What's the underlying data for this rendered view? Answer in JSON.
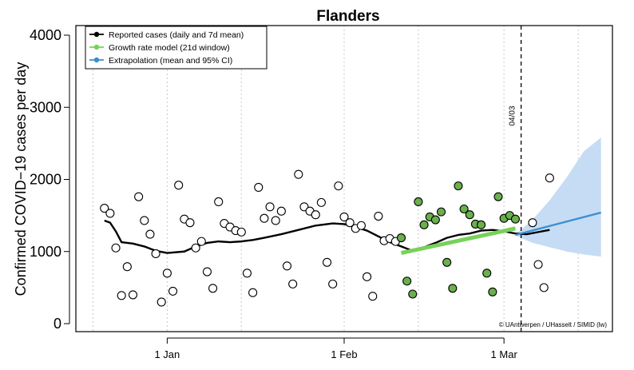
{
  "chart_data": {
    "type": "scatter",
    "title": "Flanders",
    "xlabel": "",
    "ylabel": "Confirmed COVID−19 cases per day",
    "ylim": [
      0,
      4000
    ],
    "yticks": [
      0,
      1000,
      2000,
      3000,
      4000
    ],
    "xlim": [
      "2020-12-16",
      "2021-03-20"
    ],
    "xticks": [
      {
        "date": "2021-01-01",
        "label": "1 Jan"
      },
      {
        "date": "2021-02-01",
        "label": "1 Feb"
      },
      {
        "date": "2021-03-01",
        "label": "1 Mar"
      }
    ],
    "grid_dates": [
      "2020-12-19",
      "2021-01-01",
      "2021-01-14",
      "2021-02-01",
      "2021-02-14",
      "2021-03-01",
      "2021-03-14"
    ],
    "vline": {
      "date": "2021-03-04",
      "label": "04/03",
      "style": "dashed"
    },
    "legend_position": "top-left",
    "colors": {
      "reported": "#000000",
      "growth_points": "#6ab04c",
      "growth_line": "#77d15a",
      "extrapolation": "#3a8fd1",
      "ci_band": "#c6dcf4",
      "grid": "#c8c8c8"
    },
    "series": [
      {
        "name": "Reported cases (daily and 7d mean)",
        "kind": "points_and_mean",
        "points": [
          [
            "2020-12-21",
            1600
          ],
          [
            "2020-12-22",
            1530
          ],
          [
            "2020-12-23",
            1050
          ],
          [
            "2020-12-24",
            390
          ],
          [
            "2020-12-25",
            790
          ],
          [
            "2020-12-26",
            400
          ],
          [
            "2020-12-27",
            1760
          ],
          [
            "2020-12-28",
            1430
          ],
          [
            "2020-12-29",
            1240
          ],
          [
            "2020-12-30",
            970
          ],
          [
            "2020-12-31",
            300
          ],
          [
            "2021-01-01",
            700
          ],
          [
            "2021-01-02",
            450
          ],
          [
            "2021-01-03",
            1920
          ],
          [
            "2021-01-04",
            1450
          ],
          [
            "2021-01-05",
            1400
          ],
          [
            "2021-01-06",
            1050
          ],
          [
            "2021-01-07",
            1140
          ],
          [
            "2021-01-08",
            720
          ],
          [
            "2021-01-09",
            490
          ],
          [
            "2021-01-10",
            1690
          ],
          [
            "2021-01-11",
            1390
          ],
          [
            "2021-01-12",
            1340
          ],
          [
            "2021-01-13",
            1290
          ],
          [
            "2021-01-14",
            1270
          ],
          [
            "2021-01-15",
            700
          ],
          [
            "2021-01-16",
            430
          ],
          [
            "2021-01-17",
            1890
          ],
          [
            "2021-01-18",
            1460
          ],
          [
            "2021-01-19",
            1620
          ],
          [
            "2021-01-20",
            1430
          ],
          [
            "2021-01-21",
            1560
          ],
          [
            "2021-01-22",
            800
          ],
          [
            "2021-01-23",
            550
          ],
          [
            "2021-01-24",
            2070
          ],
          [
            "2021-01-25",
            1620
          ],
          [
            "2021-01-26",
            1560
          ],
          [
            "2021-01-27",
            1510
          ],
          [
            "2021-01-28",
            1680
          ],
          [
            "2021-01-29",
            850
          ],
          [
            "2021-01-30",
            550
          ],
          [
            "2021-01-31",
            1910
          ],
          [
            "2021-02-01",
            1480
          ],
          [
            "2021-02-02",
            1400
          ],
          [
            "2021-02-03",
            1320
          ],
          [
            "2021-02-04",
            1360
          ],
          [
            "2021-02-05",
            650
          ],
          [
            "2021-02-06",
            380
          ],
          [
            "2021-02-07",
            1490
          ],
          [
            "2021-02-08",
            1150
          ],
          [
            "2021-02-09",
            1180
          ],
          [
            "2021-02-10",
            1140
          ],
          [
            "2021-03-06",
            1400
          ],
          [
            "2021-03-07",
            820
          ],
          [
            "2021-03-08",
            500
          ],
          [
            "2021-03-09",
            2020
          ]
        ],
        "mean": [
          [
            "2020-12-21",
            1430
          ],
          [
            "2020-12-22",
            1400
          ],
          [
            "2020-12-23",
            1280
          ],
          [
            "2020-12-24",
            1130
          ],
          [
            "2020-12-26",
            1110
          ],
          [
            "2020-12-28",
            1070
          ],
          [
            "2020-12-30",
            1010
          ],
          [
            "2021-01-01",
            980
          ],
          [
            "2021-01-04",
            1000
          ],
          [
            "2021-01-06",
            1070
          ],
          [
            "2021-01-08",
            1120
          ],
          [
            "2021-01-10",
            1140
          ],
          [
            "2021-01-12",
            1130
          ],
          [
            "2021-01-14",
            1140
          ],
          [
            "2021-01-16",
            1160
          ],
          [
            "2021-01-18",
            1190
          ],
          [
            "2021-01-21",
            1240
          ],
          [
            "2021-01-24",
            1300
          ],
          [
            "2021-01-27",
            1360
          ],
          [
            "2021-01-30",
            1390
          ],
          [
            "2021-02-01",
            1380
          ],
          [
            "2021-02-03",
            1340
          ],
          [
            "2021-02-05",
            1290
          ],
          [
            "2021-02-07",
            1210
          ],
          [
            "2021-02-09",
            1130
          ],
          [
            "2021-02-11",
            1070
          ],
          [
            "2021-02-13",
            1010
          ],
          [
            "2021-02-15",
            1060
          ],
          [
            "2021-02-17",
            1120
          ],
          [
            "2021-02-19",
            1190
          ],
          [
            "2021-02-21",
            1230
          ],
          [
            "2021-02-23",
            1250
          ],
          [
            "2021-02-25",
            1290
          ],
          [
            "2021-02-27",
            1300
          ],
          [
            "2021-03-01",
            1280
          ],
          [
            "2021-03-03",
            1250
          ],
          [
            "2021-03-05",
            1240
          ],
          [
            "2021-03-07",
            1270
          ],
          [
            "2021-03-09",
            1300
          ]
        ]
      },
      {
        "name": "Growth rate model (21d window)",
        "kind": "points_and_fit",
        "points": [
          [
            "2021-02-11",
            1190
          ],
          [
            "2021-02-12",
            590
          ],
          [
            "2021-02-13",
            410
          ],
          [
            "2021-02-14",
            1690
          ],
          [
            "2021-02-15",
            1370
          ],
          [
            "2021-02-16",
            1480
          ],
          [
            "2021-02-17",
            1440
          ],
          [
            "2021-02-18",
            1550
          ],
          [
            "2021-02-19",
            850
          ],
          [
            "2021-02-20",
            490
          ],
          [
            "2021-02-21",
            1910
          ],
          [
            "2021-02-22",
            1590
          ],
          [
            "2021-02-23",
            1510
          ],
          [
            "2021-02-24",
            1380
          ],
          [
            "2021-02-25",
            1370
          ],
          [
            "2021-02-26",
            700
          ],
          [
            "2021-02-27",
            440
          ],
          [
            "2021-02-28",
            1760
          ],
          [
            "2021-03-01",
            1460
          ],
          [
            "2021-03-02",
            1500
          ],
          [
            "2021-03-03",
            1450
          ]
        ],
        "fit": [
          [
            "2021-02-11",
            980
          ],
          [
            "2021-03-03",
            1320
          ]
        ]
      },
      {
        "name": "Extrapolation (mean and 95% CI)",
        "kind": "line_and_band",
        "mean": [
          [
            "2021-03-03",
            1230
          ],
          [
            "2021-03-18",
            1540
          ]
        ],
        "band": [
          [
            "2021-03-03",
            1220,
            1240
          ],
          [
            "2021-03-06",
            1120,
            1440
          ],
          [
            "2021-03-09",
            1060,
            1710
          ],
          [
            "2021-03-12",
            1000,
            2030
          ],
          [
            "2021-03-15",
            960,
            2390
          ],
          [
            "2021-03-18",
            930,
            2580
          ]
        ]
      }
    ],
    "annotation": "© UAntwerpen / UHasselt / SIMID (lw)"
  }
}
